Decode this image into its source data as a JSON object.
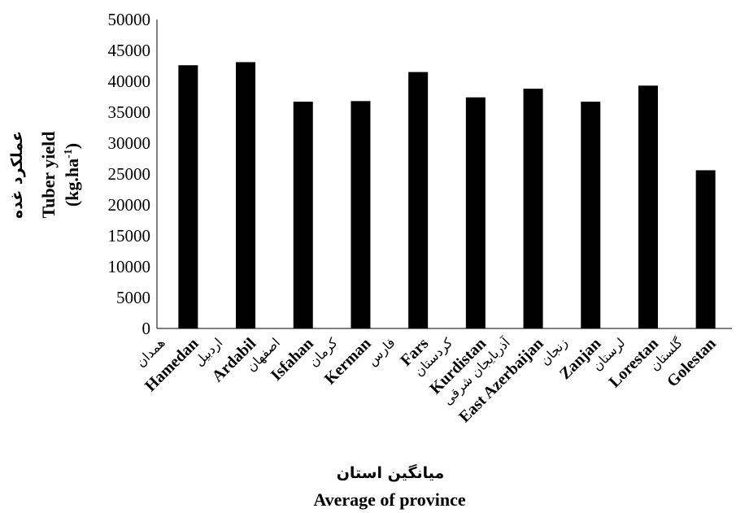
{
  "chart_data": {
    "type": "bar",
    "categories": [
      "Hamedan",
      "Ardabil",
      "Isfahan",
      "Kerman",
      "Fars",
      "Kurdistan",
      "East Azerbaijan",
      "Zanjan",
      "Lorestan",
      "Golestan"
    ],
    "categories_fa": [
      "همدان",
      "اردبیل",
      "اصفهان",
      "کرمان",
      "فارس",
      "کردستان",
      "آذربایجان شرقی",
      "زنجان",
      "لرستان",
      "گلستان"
    ],
    "values": [
      42600,
      43100,
      36700,
      36800,
      41500,
      37400,
      38800,
      36700,
      39300,
      25600
    ],
    "ylim": [
      0,
      50000
    ],
    "yticks": [
      "0",
      "5000",
      "10000",
      "15000",
      "20000",
      "25000",
      "30000",
      "35000",
      "40000",
      "45000",
      "50000"
    ],
    "ylabel_fa": "عملکرد غده",
    "ylabel_en_1": "Tuber yield",
    "ylabel_en_2": "(kg.ha",
    "ylabel_en_sup": "-1",
    "ylabel_en_close": ")",
    "xlabel_fa": "میانگین استان",
    "xlabel_en": "Average of province",
    "bar_color": "#000000",
    "grid": false
  }
}
